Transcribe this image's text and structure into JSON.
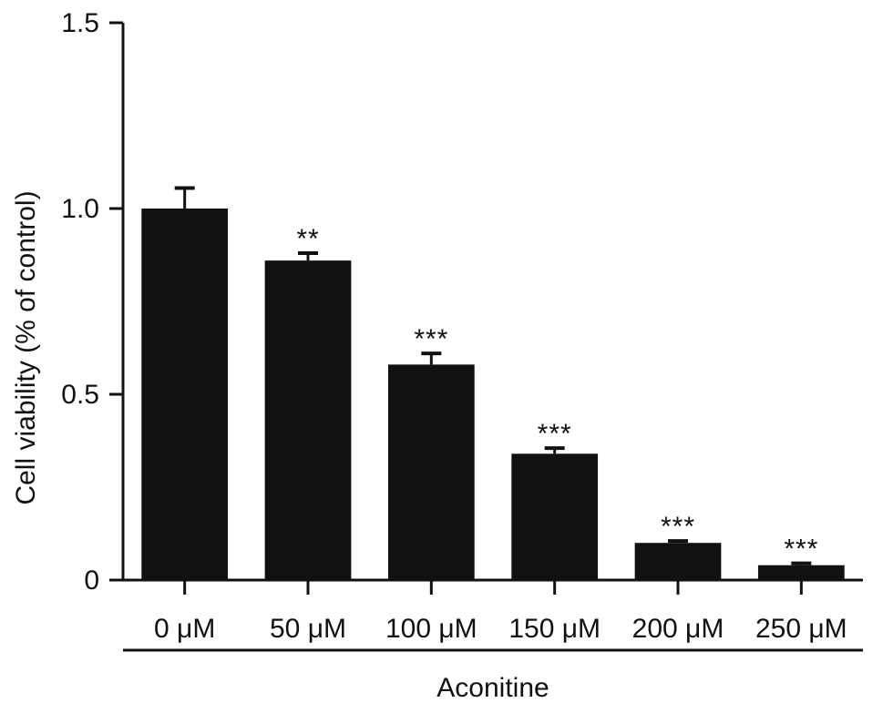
{
  "chart_data": {
    "type": "bar",
    "title": "",
    "ylabel": "Cell viability (% of control)",
    "xlabel": "Aconitine",
    "ylim": [
      0,
      1.5
    ],
    "yticks": [
      {
        "value": 0,
        "label": "0"
      },
      {
        "value": 0.5,
        "label": "0.5"
      },
      {
        "value": 1.0,
        "label": "1.0"
      },
      {
        "value": 1.5,
        "label": "1.5"
      }
    ],
    "categories": [
      "0 μM",
      "50 μM",
      "100 μM",
      "150 μM",
      "200 μM",
      "250 μM"
    ],
    "values": [
      1.0,
      0.86,
      0.58,
      0.34,
      0.1,
      0.04
    ],
    "errors": [
      0.055,
      0.02,
      0.03,
      0.015,
      0.005,
      0.005
    ],
    "significance": [
      "",
      "**",
      "***",
      "***",
      "***",
      "***"
    ],
    "bar_color": "#111111",
    "grid": false,
    "legend": "none"
  }
}
